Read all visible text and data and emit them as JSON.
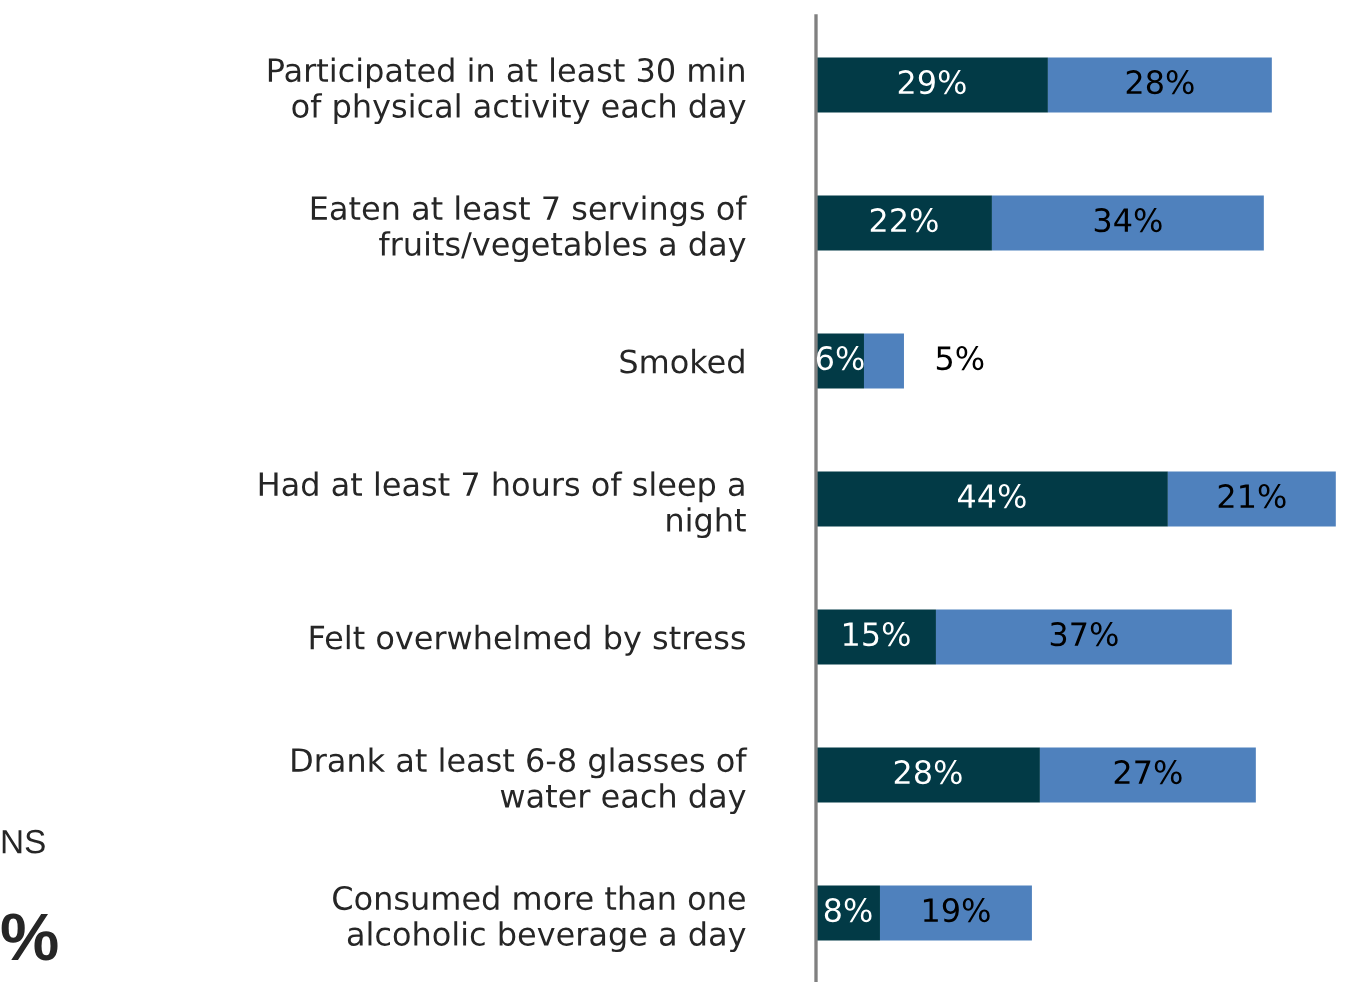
{
  "chart_data": {
    "type": "bar",
    "orientation": "horizontal",
    "stacked": true,
    "tick_labels": "y",
    "categories": [
      "Participated in at least 30 min\nof physical activity each day",
      "Eaten at least 7 servings of\nfruits/vegetables a day",
      "Smoked",
      "Had at least 7 hours of sleep a\nnight",
      "Felt overwhelmed by stress",
      "Drank at least 6-8 glasses of\nwater each day",
      "Consumed more than one\nalcoholic beverage a day"
    ],
    "series": [
      {
        "color": "#023a46",
        "values": [
          29,
          22,
          6,
          44,
          15,
          28,
          8
        ],
        "value_labels": [
          "29%",
          "22%",
          "6%",
          "44%",
          "15%",
          "28%",
          "8%"
        ]
      },
      {
        "color": "#4f81bd",
        "values": [
          28,
          34,
          5,
          21,
          37,
          27,
          19
        ],
        "value_labels": [
          "28%",
          "34%",
          "5%",
          "21%",
          "37%",
          "27%",
          "19%"
        ]
      }
    ],
    "annotations": [
      "NS",
      "%"
    ]
  }
}
